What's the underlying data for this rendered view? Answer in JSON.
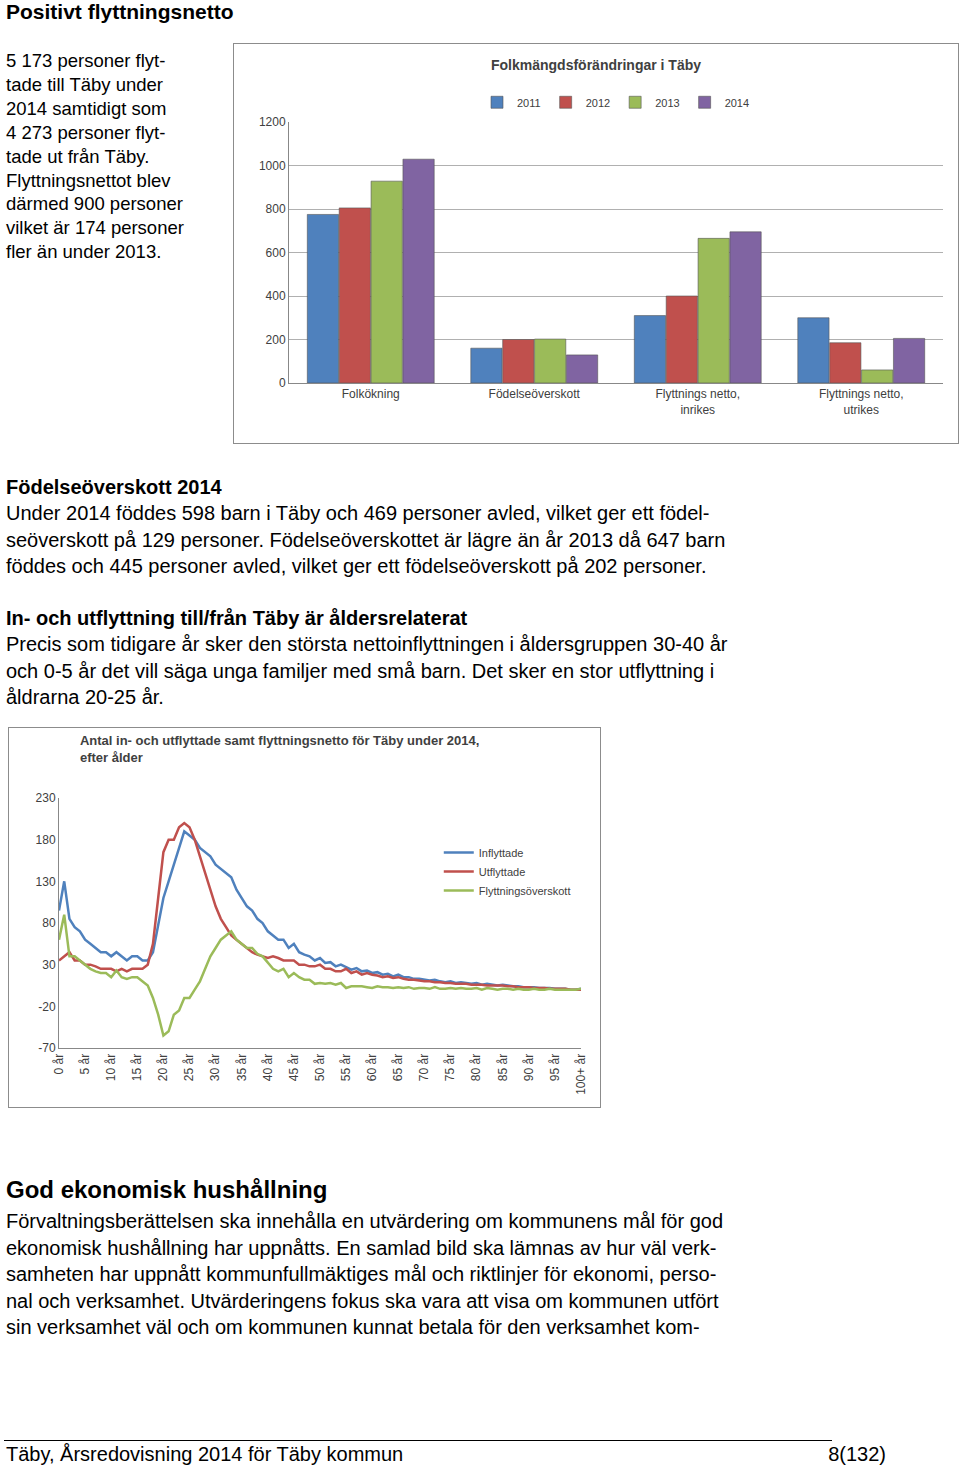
{
  "document": {
    "section1": {
      "heading": "Positivt flyttningsnetto",
      "lines": [
        "5 173 personer flyt-",
        "tade till Täby under",
        "2014 samtidigt som",
        "4 273 personer flyt-",
        "tade ut från Täby.",
        "Flyttningsnettot blev",
        "därmed 900 personer",
        "vilket är 174 personer",
        "fler än under 2013."
      ]
    },
    "section2": {
      "heading": "Födelseöverskott 2014",
      "lines": [
        "Under 2014 föddes 598 barn i Täby och 469 personer avled, vilket ger ett födel-",
        "seöverskott på 129 personer. Födelseöverskottet är lägre än år 2013 då 647 barn",
        "föddes och 445 personer avled, vilket ger ett födelseöverskott på 202 personer."
      ]
    },
    "section3": {
      "heading": "In- och utflyttning till/från Täby är åldersrelaterat",
      "lines": [
        "Precis som tidigare år sker den största nettoinflyttningen i åldersgruppen 30-40 år",
        "och 0-5 år det vill säga unga familjer med små barn. Det sker en stor utflyttning i",
        "åldrarna 20-25 år."
      ]
    },
    "section4": {
      "heading": "God ekonomisk hushållning",
      "lines": [
        "Förvaltningsberättelsen ska innehålla en utvärdering om kommunens mål för god",
        "ekonomisk hushållning har uppnåtts. En samlad bild ska lämnas av hur väl verk-",
        "samheten har uppnått kommunfullmäktiges mål och riktlinjer för ekonomi, perso-",
        "nal och verksamhet. Utvärderingens fokus ska vara att visa om kommunen utfört",
        "sin verksamhet väl och om kommunen kunnat betala för den verksamhet kom-"
      ]
    },
    "footer": {
      "left": "Täby, Årsredovisning 2014 för Täby kommun",
      "right": "8(132)"
    }
  },
  "chart_data": [
    {
      "type": "bar",
      "title": "Folkmängdsförändringar i Täby",
      "categories": [
        "Folkökning",
        "Födelseöverskott",
        "Flyttnings netto, inrikes",
        "Flyttnings netto, utrikes"
      ],
      "series": [
        {
          "name": "2011",
          "color": "#4f81bd",
          "values": [
            775,
            160,
            310,
            300
          ]
        },
        {
          "name": "2012",
          "color": "#c0504d",
          "values": [
            805,
            200,
            400,
            185
          ]
        },
        {
          "name": "2013",
          "color": "#9bbb59",
          "values": [
            928,
            202,
            665,
            60
          ]
        },
        {
          "name": "2014",
          "color": "#8064a2",
          "values": [
            1029,
            129,
            695,
            205
          ]
        }
      ],
      "ylim": [
        0,
        1200
      ],
      "yticks": [
        0,
        200,
        400,
        600,
        800,
        1000,
        1200
      ],
      "grid": true,
      "legend": "top"
    },
    {
      "type": "line",
      "title": "Antal in- och utflyttade samt flyttningsnetto för Täby under 2014, efter ålder",
      "x": [
        0,
        1,
        2,
        3,
        4,
        5,
        6,
        7,
        8,
        9,
        10,
        11,
        12,
        13,
        14,
        15,
        16,
        17,
        18,
        19,
        20,
        21,
        22,
        23,
        24,
        25,
        26,
        27,
        28,
        29,
        30,
        31,
        32,
        33,
        34,
        35,
        36,
        37,
        38,
        39,
        40,
        41,
        42,
        43,
        44,
        45,
        46,
        47,
        48,
        49,
        50,
        51,
        52,
        53,
        54,
        55,
        56,
        57,
        58,
        59,
        60,
        61,
        62,
        63,
        64,
        65,
        66,
        67,
        68,
        69,
        70,
        71,
        72,
        73,
        74,
        75,
        76,
        77,
        78,
        79,
        80,
        81,
        82,
        83,
        84,
        85,
        86,
        87,
        88,
        89,
        90,
        91,
        92,
        93,
        94,
        95,
        96,
        97,
        98,
        99,
        100
      ],
      "series": [
        {
          "name": "Inflyttade",
          "color": "#4f81bd",
          "values": [
            95,
            130,
            85,
            75,
            70,
            60,
            55,
            50,
            45,
            45,
            40,
            45,
            40,
            35,
            40,
            40,
            35,
            35,
            45,
            80,
            110,
            130,
            150,
            170,
            190,
            185,
            180,
            170,
            165,
            160,
            150,
            145,
            140,
            135,
            120,
            110,
            100,
            95,
            85,
            80,
            70,
            65,
            60,
            60,
            50,
            55,
            45,
            42,
            40,
            35,
            38,
            32,
            33,
            28,
            30,
            27,
            24,
            26,
            22,
            23,
            20,
            21,
            18,
            19,
            16,
            18,
            15,
            15,
            13,
            13,
            12,
            11,
            12,
            10,
            9,
            10,
            8,
            9,
            8,
            7,
            8,
            6,
            7,
            6,
            5,
            6,
            5,
            4,
            4,
            3,
            3,
            3,
            2,
            2,
            2,
            1,
            1,
            1,
            0,
            0,
            1
          ]
        },
        {
          "name": "Utflyttade",
          "color": "#c0504d",
          "values": [
            35,
            40,
            45,
            35,
            35,
            30,
            30,
            28,
            25,
            25,
            25,
            22,
            25,
            22,
            25,
            25,
            25,
            30,
            55,
            110,
            165,
            180,
            180,
            195,
            200,
            195,
            180,
            160,
            140,
            120,
            100,
            85,
            75,
            65,
            60,
            55,
            50,
            45,
            42,
            40,
            38,
            40,
            38,
            35,
            35,
            35,
            30,
            30,
            28,
            28,
            30,
            25,
            25,
            22,
            22,
            25,
            20,
            22,
            18,
            20,
            18,
            17,
            15,
            16,
            14,
            15,
            13,
            12,
            12,
            11,
            10,
            10,
            9,
            9,
            8,
            8,
            7,
            7,
            7,
            6,
            6,
            6,
            5,
            5,
            5,
            5,
            4,
            4,
            3,
            3,
            3,
            2,
            2,
            2,
            1,
            1,
            1,
            1,
            0,
            0,
            0
          ]
        },
        {
          "name": "Flyttningsöverskott",
          "color": "#9bbb59",
          "values": [
            60,
            90,
            40,
            40,
            35,
            30,
            25,
            22,
            20,
            20,
            15,
            23,
            15,
            13,
            15,
            15,
            10,
            5,
            -10,
            -30,
            -55,
            -50,
            -30,
            -25,
            -10,
            -10,
            0,
            10,
            25,
            40,
            50,
            60,
            65,
            70,
            60,
            55,
            50,
            50,
            43,
            40,
            32,
            25,
            22,
            25,
            15,
            20,
            15,
            12,
            12,
            7,
            8,
            7,
            8,
            6,
            8,
            2,
            4,
            4,
            4,
            3,
            2,
            4,
            3,
            3,
            2,
            3,
            2,
            3,
            1,
            2,
            2,
            1,
            3,
            1,
            1,
            2,
            1,
            2,
            1,
            1,
            2,
            0,
            2,
            1,
            0,
            1,
            1,
            0,
            1,
            0,
            0,
            1,
            0,
            0,
            1,
            0,
            0,
            0,
            0,
            0,
            1
          ]
        }
      ],
      "xlim": [
        0,
        100
      ],
      "xticks": [
        {
          "value": 0,
          "label": "0 år"
        },
        {
          "value": 5,
          "label": "5 år"
        },
        {
          "value": 10,
          "label": "10 år"
        },
        {
          "value": 15,
          "label": "15 år"
        },
        {
          "value": 20,
          "label": "20 år"
        },
        {
          "value": 25,
          "label": "25 år"
        },
        {
          "value": 30,
          "label": "30 år"
        },
        {
          "value": 35,
          "label": "35 år"
        },
        {
          "value": 40,
          "label": "40 år"
        },
        {
          "value": 45,
          "label": "45 år"
        },
        {
          "value": 50,
          "label": "50 år"
        },
        {
          "value": 55,
          "label": "55 år"
        },
        {
          "value": 60,
          "label": "60 år"
        },
        {
          "value": 65,
          "label": "65 år"
        },
        {
          "value": 70,
          "label": "70 år"
        },
        {
          "value": 75,
          "label": "75 år"
        },
        {
          "value": 80,
          "label": "80 år"
        },
        {
          "value": 85,
          "label": "85 år"
        },
        {
          "value": 90,
          "label": "90 år"
        },
        {
          "value": 95,
          "label": "95 år"
        },
        {
          "value": 100,
          "label": "100+ år"
        }
      ],
      "ylim": [
        -70,
        230
      ],
      "yticks": [
        -70,
        -20,
        30,
        80,
        130,
        180,
        230
      ],
      "grid": false,
      "legend": "upper right"
    }
  ]
}
